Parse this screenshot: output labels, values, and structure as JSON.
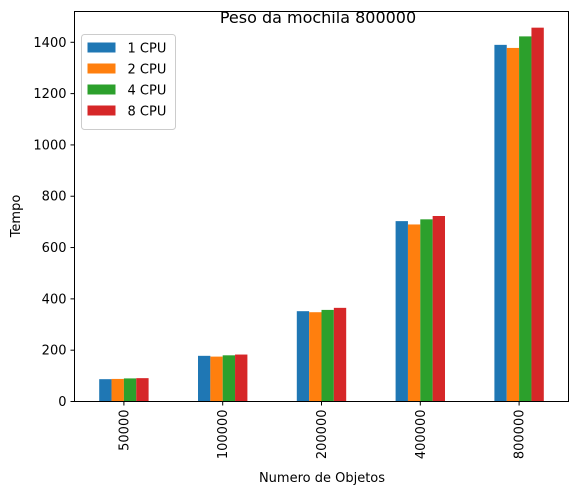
{
  "chart_data": {
    "type": "bar",
    "title": "Peso da mochila 800000",
    "xlabel": "Numero de Objetos",
    "ylabel": "Tempo",
    "categories": [
      "50000",
      "100000",
      "200000",
      "400000",
      "800000"
    ],
    "ylim": [
      0,
      1520
    ],
    "yticks": [
      0,
      200,
      400,
      600,
      800,
      1000,
      1200,
      1400
    ],
    "grid": false,
    "legend_position": "upper left",
    "series": [
      {
        "name": "1 CPU",
        "color": "#1f77b4",
        "values": [
          87,
          178,
          352,
          703,
          1390
        ]
      },
      {
        "name": "2 CPU",
        "color": "#ff7f0e",
        "values": [
          88,
          175,
          348,
          690,
          1378
        ]
      },
      {
        "name": "4 CPU",
        "color": "#2ca02c",
        "values": [
          90,
          180,
          357,
          710,
          1423
        ]
      },
      {
        "name": "8 CPU",
        "color": "#d62728",
        "values": [
          91,
          183,
          365,
          723,
          1457
        ]
      }
    ]
  }
}
